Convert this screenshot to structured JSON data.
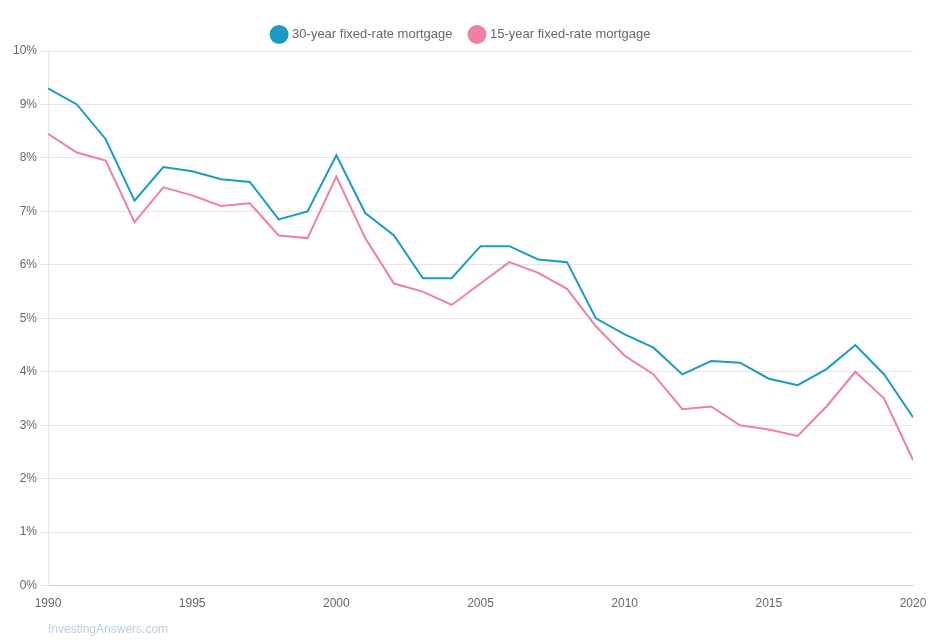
{
  "chart_data": {
    "type": "line",
    "x": [
      1990,
      1991,
      1992,
      1993,
      1994,
      1995,
      1996,
      1997,
      1998,
      1999,
      2000,
      2001,
      2002,
      2003,
      2004,
      2005,
      2006,
      2007,
      2008,
      2009,
      2010,
      2011,
      2012,
      2013,
      2014,
      2015,
      2016,
      2017,
      2018,
      2019,
      2020
    ],
    "series": [
      {
        "name": "30-year fixed-rate mortgage",
        "color": "#1a9bc4",
        "values": [
          9.3,
          9.0,
          8.35,
          7.2,
          7.83,
          7.75,
          7.6,
          7.55,
          6.85,
          7.0,
          8.05,
          6.97,
          6.55,
          5.75,
          5.75,
          6.35,
          6.35,
          6.1,
          6.05,
          5.0,
          4.7,
          4.45,
          3.95,
          4.2,
          4.17,
          3.87,
          3.75,
          4.05,
          4.5,
          3.95,
          3.15
        ]
      },
      {
        "name": "15-year fixed-rate mortgage",
        "color": "#f07fa0",
        "values": [
          8.45,
          8.1,
          7.95,
          6.8,
          7.45,
          7.3,
          7.1,
          7.15,
          6.55,
          6.5,
          7.65,
          6.5,
          5.65,
          5.5,
          5.25,
          5.65,
          6.05,
          5.85,
          5.55,
          4.85,
          4.3,
          3.95,
          3.3,
          3.35,
          3.0,
          2.92,
          2.8,
          3.35,
          4.0,
          3.5,
          2.35
        ]
      }
    ],
    "xlim": [
      1990,
      2020
    ],
    "xticks": [
      1990,
      1995,
      2000,
      2005,
      2010,
      2015,
      2020
    ],
    "ylim": [
      0,
      10
    ],
    "yticks": [
      {
        "value": 0,
        "label": "0%"
      },
      {
        "value": 1,
        "label": "1%"
      },
      {
        "value": 2,
        "label": "2%"
      },
      {
        "value": 3,
        "label": "3%"
      },
      {
        "value": 4,
        "label": "4%"
      },
      {
        "value": 5,
        "label": "5%"
      },
      {
        "value": 6,
        "label": "6%"
      },
      {
        "value": 7,
        "label": "7%"
      },
      {
        "value": 8,
        "label": "8%"
      },
      {
        "value": 9,
        "label": "9%"
      },
      {
        "value": 10,
        "label": "10%"
      }
    ],
    "grid": "y",
    "legend": "top",
    "annotations": [
      {
        "text": "InvestingAnswers.com",
        "color": "#b8cfe0"
      }
    ]
  }
}
